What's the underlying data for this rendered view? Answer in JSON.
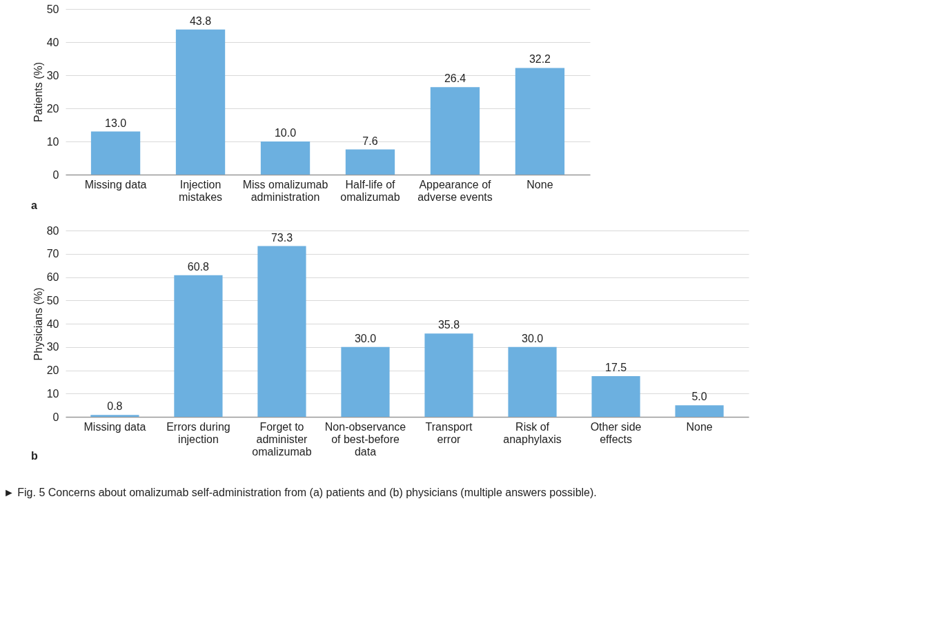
{
  "chart_data": [
    {
      "type": "bar",
      "ylabel": "Patients (%)",
      "categories": [
        "Missing data",
        "Injection mistakes",
        "Miss omalizumab administration",
        "Half-life of omalizumab",
        "Appearance of adverse events",
        "None"
      ],
      "values": [
        13.0,
        43.8,
        10.0,
        7.6,
        26.4,
        32.2
      ],
      "value_labels": [
        "13.0",
        "43.8",
        "10.0",
        "7.6",
        "26.4",
        "32.2"
      ],
      "color": "#6cb0e0",
      "ylim": [
        0,
        50
      ],
      "yticks": [
        0,
        10,
        20,
        30,
        40,
        50
      ],
      "grid": "y",
      "annotations": [
        "a"
      ]
    },
    {
      "type": "bar",
      "ylabel": "Physicians (%)",
      "categories": [
        "Missing data",
        "Errors during injection",
        "Forget to administer omalizumab",
        "Non-observance of best-before data",
        "Transport error",
        "Risk of anaphylaxis",
        "Other side effects",
        "None"
      ],
      "values": [
        0.8,
        60.8,
        73.3,
        30.0,
        35.8,
        30.0,
        17.5,
        5.0
      ],
      "value_labels": [
        "0.8",
        "60.8",
        "73.3",
        "30.0",
        "35.8",
        "30.0",
        "17.5",
        "5.0"
      ],
      "color": "#6cb0e0",
      "ylim": [
        0,
        80
      ],
      "yticks": [
        0,
        10,
        20,
        30,
        40,
        50,
        60,
        70,
        80
      ],
      "grid": "y",
      "annotations": [
        "b",
        "► Fig. 5 Concerns about omalizumab self-administration from (a) patients and (b) physicians (multiple answers possible)."
      ]
    }
  ]
}
